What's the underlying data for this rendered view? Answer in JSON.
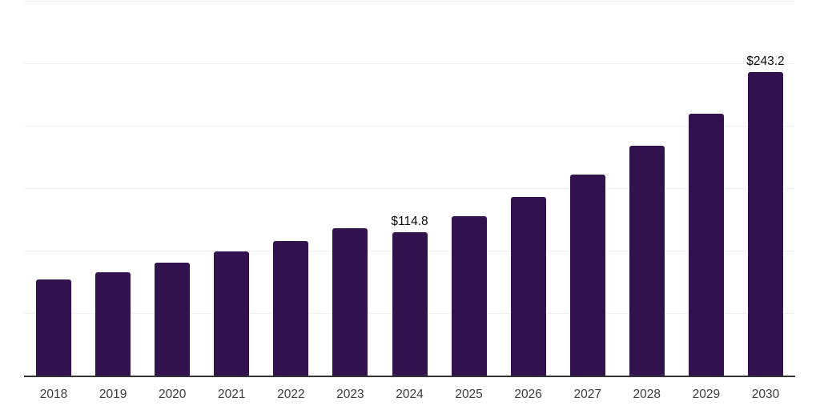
{
  "chart_data": {
    "type": "bar",
    "title": "",
    "xlabel": "",
    "ylabel": "",
    "categories": [
      "2018",
      "2019",
      "2020",
      "2021",
      "2022",
      "2023",
      "2024",
      "2025",
      "2026",
      "2027",
      "2028",
      "2029",
      "2030"
    ],
    "values": [
      77,
      83,
      91,
      99.4,
      108,
      118.5,
      114.8,
      128.2,
      143.5,
      161.3,
      184,
      210,
      243.2
    ],
    "data_labels": [
      "",
      "",
      "",
      "",
      "",
      "",
      "$114.8",
      "",
      "",
      "",
      "",
      "",
      "$243.2"
    ],
    "ylim": [
      0,
      300
    ],
    "gridline_values": [
      50,
      100,
      150,
      200,
      250,
      300
    ],
    "grid": "horizontal-only",
    "legend_position": "none",
    "currency_prefix": "$",
    "colors": {
      "bar": "#341250",
      "grid": "#f1f1f1",
      "axis": "#333333",
      "value_label": "#0a0a0a",
      "tick_label": "#3c3c3c",
      "background": "#ffffff"
    }
  }
}
